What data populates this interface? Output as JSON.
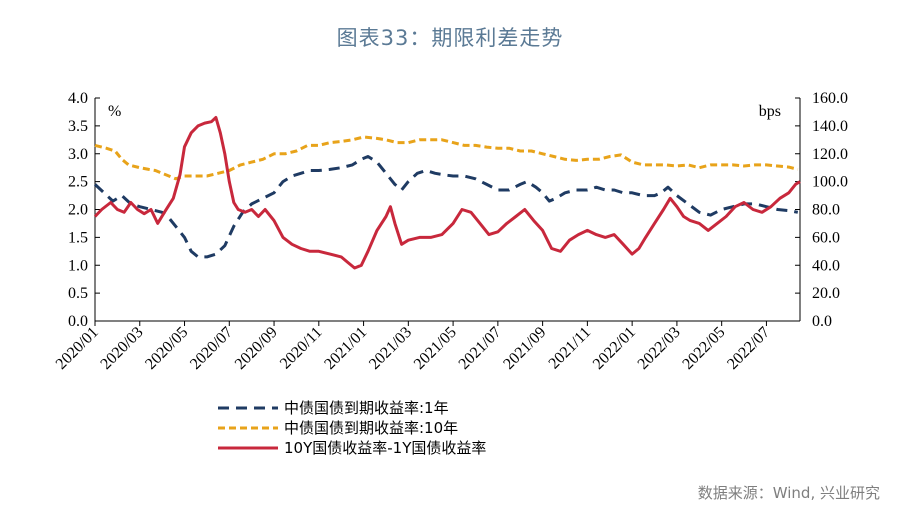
{
  "title": "图表33：期限利差走势",
  "source": "数据来源：Wind, 兴业研究",
  "chart_data": {
    "type": "line",
    "left_axis": {
      "unit_label": "%",
      "ticks": [
        "0.0",
        "0.5",
        "1.0",
        "1.5",
        "2.0",
        "2.5",
        "3.0",
        "3.5",
        "4.0"
      ],
      "range": [
        0,
        4
      ]
    },
    "right_axis": {
      "unit_label": "bps",
      "ticks": [
        "0.0",
        "20.0",
        "40.0",
        "60.0",
        "80.0",
        "100.0",
        "120.0",
        "140.0",
        "160.0"
      ],
      "range": [
        0,
        160
      ]
    },
    "x_labels": [
      "2020/01",
      "2020/03",
      "2020/05",
      "2020/07",
      "2020/09",
      "2020/11",
      "2021/01",
      "2021/03",
      "2021/05",
      "2021/07",
      "2021/09",
      "2021/11",
      "2022/01",
      "2022/03",
      "2022/05",
      "2022/07"
    ],
    "x_range_months": [
      0,
      31.5
    ],
    "grid": false,
    "legend_position": "bottom-center",
    "series": [
      {
        "name": "中债国债到期收益率:1年",
        "axis": "left",
        "color": "#1f3b63",
        "dash": "dashed",
        "points": [
          [
            0,
            2.45
          ],
          [
            0.4,
            2.3
          ],
          [
            0.8,
            2.15
          ],
          [
            1.2,
            2.25
          ],
          [
            1.6,
            2.1
          ],
          [
            2,
            2.05
          ],
          [
            2.5,
            2.0
          ],
          [
            3,
            1.95
          ],
          [
            3.3,
            1.85
          ],
          [
            3.6,
            1.7
          ],
          [
            4,
            1.5
          ],
          [
            4.3,
            1.25
          ],
          [
            4.6,
            1.15
          ],
          [
            5,
            1.15
          ],
          [
            5.4,
            1.2
          ],
          [
            5.8,
            1.35
          ],
          [
            6.2,
            1.7
          ],
          [
            6.6,
            1.95
          ],
          [
            7,
            2.1
          ],
          [
            7.5,
            2.2
          ],
          [
            8,
            2.3
          ],
          [
            8.4,
            2.5
          ],
          [
            8.8,
            2.6
          ],
          [
            9.2,
            2.65
          ],
          [
            9.6,
            2.7
          ],
          [
            10,
            2.7
          ],
          [
            10.5,
            2.72
          ],
          [
            11,
            2.75
          ],
          [
            11.5,
            2.8
          ],
          [
            11.9,
            2.9
          ],
          [
            12.2,
            2.95
          ],
          [
            12.6,
            2.85
          ],
          [
            13,
            2.65
          ],
          [
            13.4,
            2.45
          ],
          [
            13.7,
            2.35
          ],
          [
            14,
            2.5
          ],
          [
            14.4,
            2.65
          ],
          [
            14.8,
            2.7
          ],
          [
            15.2,
            2.65
          ],
          [
            15.6,
            2.62
          ],
          [
            16,
            2.6
          ],
          [
            16.5,
            2.6
          ],
          [
            17,
            2.55
          ],
          [
            17.5,
            2.45
          ],
          [
            18,
            2.35
          ],
          [
            18.5,
            2.35
          ],
          [
            19,
            2.45
          ],
          [
            19.3,
            2.5
          ],
          [
            19.7,
            2.4
          ],
          [
            20,
            2.3
          ],
          [
            20.3,
            2.15
          ],
          [
            20.6,
            2.2
          ],
          [
            21,
            2.3
          ],
          [
            21.5,
            2.35
          ],
          [
            22,
            2.35
          ],
          [
            22.4,
            2.4
          ],
          [
            22.8,
            2.35
          ],
          [
            23.2,
            2.35
          ],
          [
            23.6,
            2.3
          ],
          [
            24,
            2.3
          ],
          [
            24.5,
            2.25
          ],
          [
            25,
            2.25
          ],
          [
            25.3,
            2.3
          ],
          [
            25.6,
            2.4
          ],
          [
            26,
            2.25
          ],
          [
            26.5,
            2.1
          ],
          [
            27,
            1.95
          ],
          [
            27.5,
            1.9
          ],
          [
            28,
            2.0
          ],
          [
            28.5,
            2.05
          ],
          [
            29,
            2.1
          ],
          [
            29.5,
            2.1
          ],
          [
            30,
            2.05
          ],
          [
            30.5,
            2.0
          ],
          [
            31,
            1.98
          ],
          [
            31.4,
            1.95
          ]
        ]
      },
      {
        "name": "中债国债到期收益率:10年",
        "axis": "left",
        "color": "#e8a31a",
        "dash": "dashed",
        "points": [
          [
            0,
            3.15
          ],
          [
            0.5,
            3.1
          ],
          [
            0.9,
            3.05
          ],
          [
            1.2,
            2.9
          ],
          [
            1.5,
            2.8
          ],
          [
            2,
            2.75
          ],
          [
            2.4,
            2.72
          ],
          [
            2.7,
            2.7
          ],
          [
            3,
            2.65
          ],
          [
            3.3,
            2.6
          ],
          [
            3.6,
            2.55
          ],
          [
            4,
            2.6
          ],
          [
            4.5,
            2.6
          ],
          [
            5,
            2.6
          ],
          [
            5.5,
            2.65
          ],
          [
            6,
            2.7
          ],
          [
            6.5,
            2.8
          ],
          [
            7,
            2.85
          ],
          [
            7.5,
            2.9
          ],
          [
            8,
            3.0
          ],
          [
            8.5,
            3.0
          ],
          [
            9,
            3.05
          ],
          [
            9.5,
            3.15
          ],
          [
            10,
            3.15
          ],
          [
            10.5,
            3.2
          ],
          [
            11,
            3.22
          ],
          [
            11.5,
            3.25
          ],
          [
            12,
            3.3
          ],
          [
            12.5,
            3.28
          ],
          [
            13,
            3.25
          ],
          [
            13.5,
            3.2
          ],
          [
            14,
            3.2
          ],
          [
            14.5,
            3.25
          ],
          [
            15,
            3.25
          ],
          [
            15.5,
            3.25
          ],
          [
            16,
            3.2
          ],
          [
            16.5,
            3.15
          ],
          [
            17,
            3.15
          ],
          [
            17.5,
            3.12
          ],
          [
            18,
            3.1
          ],
          [
            18.5,
            3.1
          ],
          [
            19,
            3.05
          ],
          [
            19.5,
            3.05
          ],
          [
            20,
            3.0
          ],
          [
            20.5,
            2.95
          ],
          [
            21,
            2.9
          ],
          [
            21.5,
            2.88
          ],
          [
            22,
            2.9
          ],
          [
            22.5,
            2.9
          ],
          [
            23,
            2.95
          ],
          [
            23.5,
            2.98
          ],
          [
            24,
            2.85
          ],
          [
            24.5,
            2.8
          ],
          [
            25,
            2.8
          ],
          [
            25.5,
            2.8
          ],
          [
            26,
            2.78
          ],
          [
            26.5,
            2.8
          ],
          [
            27,
            2.75
          ],
          [
            27.5,
            2.8
          ],
          [
            28,
            2.8
          ],
          [
            28.5,
            2.8
          ],
          [
            29,
            2.78
          ],
          [
            29.5,
            2.8
          ],
          [
            30,
            2.8
          ],
          [
            30.5,
            2.78
          ],
          [
            31,
            2.76
          ],
          [
            31.4,
            2.72
          ]
        ]
      },
      {
        "name": "10Y国债收益率-1Y国债收益率",
        "axis": "right",
        "color": "#c8283c",
        "dash": "solid",
        "points": [
          [
            0,
            75
          ],
          [
            0.3,
            80
          ],
          [
            0.7,
            85
          ],
          [
            1,
            80
          ],
          [
            1.3,
            78
          ],
          [
            1.6,
            85
          ],
          [
            1.9,
            80
          ],
          [
            2.2,
            77
          ],
          [
            2.5,
            80
          ],
          [
            2.8,
            70
          ],
          [
            3.1,
            78
          ],
          [
            3.5,
            88
          ],
          [
            3.8,
            105
          ],
          [
            4,
            125
          ],
          [
            4.3,
            135
          ],
          [
            4.6,
            140
          ],
          [
            4.9,
            142
          ],
          [
            5.2,
            143
          ],
          [
            5.4,
            146
          ],
          [
            5.6,
            135
          ],
          [
            5.8,
            120
          ],
          [
            6,
            100
          ],
          [
            6.2,
            85
          ],
          [
            6.4,
            80
          ],
          [
            6.7,
            78
          ],
          [
            7,
            80
          ],
          [
            7.3,
            75
          ],
          [
            7.6,
            80
          ],
          [
            8,
            72
          ],
          [
            8.4,
            60
          ],
          [
            8.8,
            55
          ],
          [
            9.2,
            52
          ],
          [
            9.6,
            50
          ],
          [
            10,
            50
          ],
          [
            10.5,
            48
          ],
          [
            11,
            46
          ],
          [
            11.3,
            42
          ],
          [
            11.6,
            38
          ],
          [
            11.9,
            40
          ],
          [
            12.2,
            50
          ],
          [
            12.6,
            65
          ],
          [
            13,
            75
          ],
          [
            13.2,
            82
          ],
          [
            13.4,
            70
          ],
          [
            13.7,
            55
          ],
          [
            14,
            58
          ],
          [
            14.5,
            60
          ],
          [
            15,
            60
          ],
          [
            15.5,
            62
          ],
          [
            16,
            70
          ],
          [
            16.4,
            80
          ],
          [
            16.8,
            78
          ],
          [
            17.2,
            70
          ],
          [
            17.6,
            62
          ],
          [
            18,
            64
          ],
          [
            18.4,
            70
          ],
          [
            18.8,
            75
          ],
          [
            19.2,
            80
          ],
          [
            19.6,
            72
          ],
          [
            20,
            65
          ],
          [
            20.4,
            52
          ],
          [
            20.8,
            50
          ],
          [
            21.2,
            58
          ],
          [
            21.6,
            62
          ],
          [
            22,
            65
          ],
          [
            22.4,
            62
          ],
          [
            22.8,
            60
          ],
          [
            23.2,
            62
          ],
          [
            23.6,
            55
          ],
          [
            24,
            48
          ],
          [
            24.3,
            52
          ],
          [
            24.6,
            60
          ],
          [
            25,
            70
          ],
          [
            25.4,
            80
          ],
          [
            25.7,
            88
          ],
          [
            26,
            82
          ],
          [
            26.3,
            75
          ],
          [
            26.6,
            72
          ],
          [
            27,
            70
          ],
          [
            27.4,
            65
          ],
          [
            27.8,
            70
          ],
          [
            28.2,
            75
          ],
          [
            28.6,
            82
          ],
          [
            29,
            85
          ],
          [
            29.4,
            80
          ],
          [
            29.8,
            78
          ],
          [
            30.2,
            82
          ],
          [
            30.6,
            88
          ],
          [
            31,
            92
          ],
          [
            31.3,
            98
          ],
          [
            31.5,
            100
          ]
        ]
      }
    ]
  }
}
